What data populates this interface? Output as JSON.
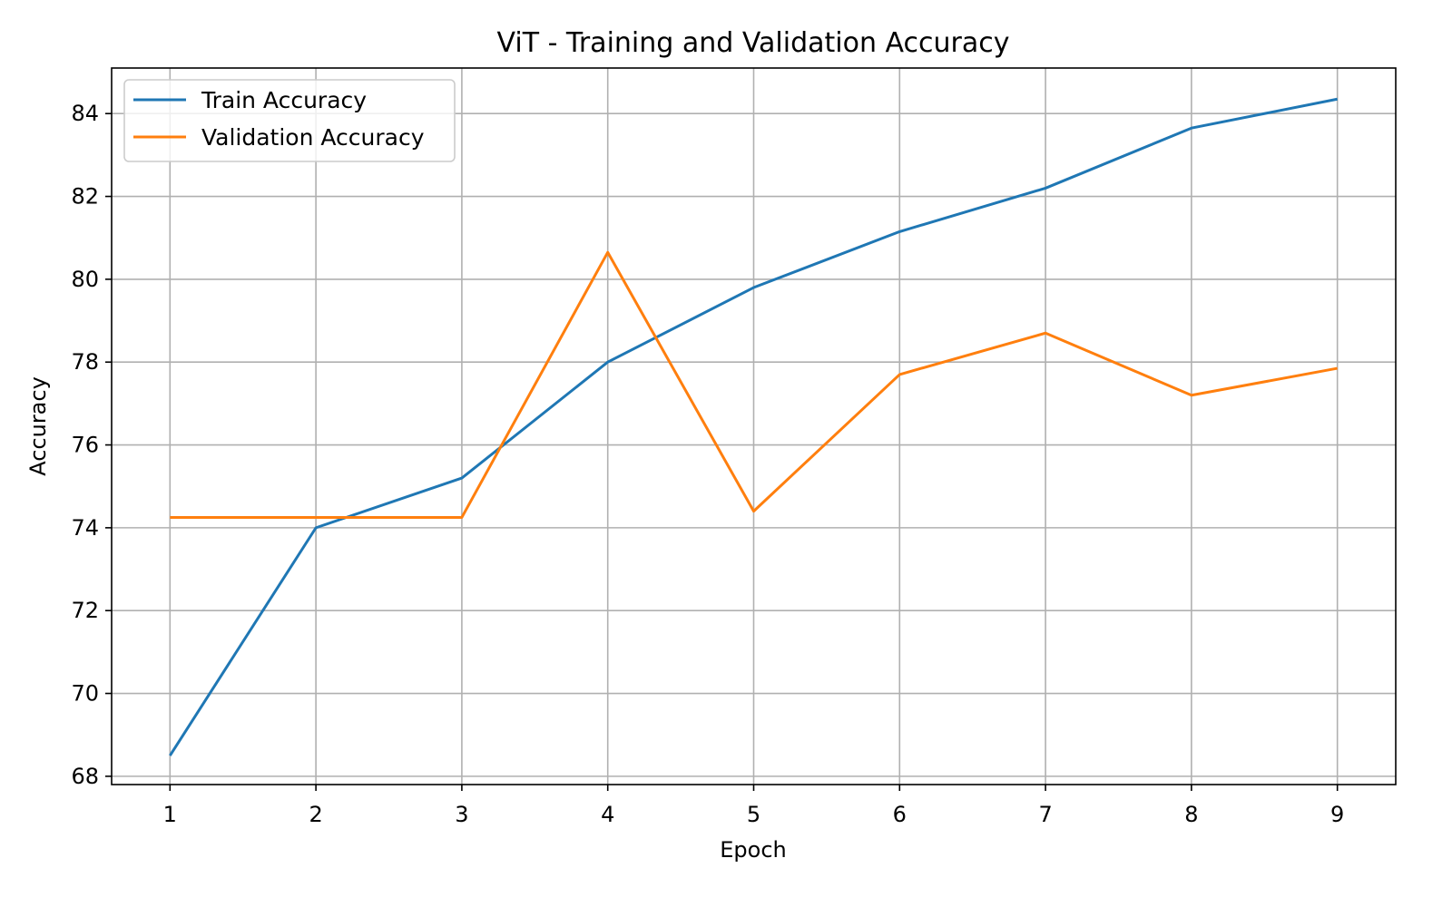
{
  "chart_data": {
    "type": "line",
    "title": "ViT - Training and Validation Accuracy",
    "xlabel": "Epoch",
    "ylabel": "Accuracy",
    "x": [
      1,
      2,
      3,
      4,
      5,
      6,
      7,
      8,
      9
    ],
    "xlim": [
      0.6,
      9.4
    ],
    "ylim": [
      67.8,
      85.1
    ],
    "xticks": [
      1,
      2,
      3,
      4,
      5,
      6,
      7,
      8,
      9
    ],
    "yticks": [
      68,
      70,
      72,
      74,
      76,
      78,
      80,
      82,
      84
    ],
    "grid": true,
    "legend_position": "top-left",
    "series": [
      {
        "name": "Train Accuracy",
        "color": "#1f77b4",
        "values": [
          68.5,
          74.0,
          75.2,
          78.0,
          79.8,
          81.15,
          82.2,
          83.65,
          84.35
        ]
      },
      {
        "name": "Validation Accuracy",
        "color": "#ff7f0e",
        "values": [
          74.25,
          74.25,
          74.25,
          80.65,
          74.4,
          77.7,
          78.7,
          77.2,
          77.85
        ]
      }
    ]
  }
}
